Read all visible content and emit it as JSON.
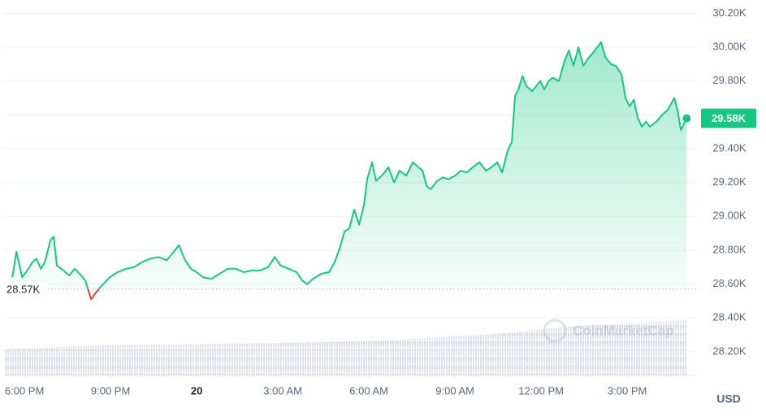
{
  "chart_data": {
    "type": "line",
    "x": [
      -0.42,
      -0.28,
      -0.08,
      0.14,
      0.28,
      0.42,
      0.57,
      0.71,
      0.91,
      1.02,
      1.13,
      1.36,
      1.56,
      1.75,
      1.98,
      2.12,
      2.32,
      2.49,
      2.69,
      2.97,
      3.25,
      3.54,
      3.82,
      4.1,
      4.39,
      4.67,
      4.95,
      5.15,
      5.38,
      5.6,
      5.8,
      6.0,
      6.23,
      6.51,
      6.79,
      7.08,
      7.36,
      7.64,
      7.92,
      8.21,
      8.49,
      8.72,
      8.92,
      9.2,
      9.48,
      9.68,
      9.85,
      10.05,
      10.33,
      10.61,
      10.81,
      10.98,
      11.15,
      11.32,
      11.49,
      11.66,
      11.83,
      11.94,
      12.11,
      12.25,
      12.45,
      12.68,
      12.88,
      13.07,
      13.3,
      13.53,
      13.73,
      13.87,
      14.01,
      14.15,
      14.38,
      14.58,
      14.77,
      15.0,
      15.2,
      15.42,
      15.62,
      15.85,
      16.08,
      16.27,
      16.47,
      16.64,
      16.84,
      16.98,
      17.09,
      17.21,
      17.35,
      17.49,
      17.69,
      17.83,
      17.97,
      18.11,
      18.26,
      18.4,
      18.62,
      18.82,
      18.96,
      19.13,
      19.3,
      19.47,
      19.67,
      19.87,
      20.09,
      20.24,
      20.43,
      20.6,
      20.8,
      20.94,
      21.08,
      21.23,
      21.37,
      21.51,
      21.65,
      21.79,
      22.02,
      22.22,
      22.41,
      22.64,
      22.75,
      22.87,
      23.07
    ],
    "series": [
      {
        "name": "BTC",
        "color": "#16c784",
        "down_color": "#ea3943",
        "values": [
          28.64,
          28.79,
          28.64,
          28.69,
          28.73,
          28.75,
          28.69,
          28.73,
          28.86,
          28.88,
          28.71,
          28.68,
          28.65,
          28.69,
          28.65,
          28.62,
          28.51,
          28.55,
          28.59,
          28.64,
          28.67,
          28.69,
          28.7,
          28.73,
          28.75,
          28.76,
          28.74,
          28.78,
          28.83,
          28.74,
          28.69,
          28.67,
          28.64,
          28.63,
          28.66,
          28.69,
          28.69,
          28.67,
          28.68,
          28.68,
          28.7,
          28.76,
          28.71,
          28.69,
          28.67,
          28.62,
          28.6,
          28.63,
          28.66,
          28.67,
          28.73,
          28.81,
          28.91,
          28.93,
          29.04,
          28.95,
          29.07,
          29.22,
          29.32,
          29.21,
          29.24,
          29.29,
          29.2,
          29.27,
          29.24,
          29.32,
          29.29,
          29.27,
          29.18,
          29.16,
          29.21,
          29.23,
          29.22,
          29.24,
          29.27,
          29.26,
          29.29,
          29.32,
          29.27,
          29.29,
          29.32,
          29.26,
          29.39,
          29.44,
          29.71,
          29.75,
          29.83,
          29.77,
          29.74,
          29.77,
          29.8,
          29.75,
          29.8,
          29.82,
          29.8,
          29.92,
          29.98,
          29.89,
          30.0,
          29.89,
          29.94,
          29.98,
          30.03,
          29.94,
          29.9,
          29.89,
          29.84,
          29.7,
          29.65,
          29.69,
          29.58,
          29.53,
          29.56,
          29.53,
          29.56,
          29.6,
          29.63,
          29.7,
          29.63,
          29.51,
          29.58
        ]
      }
    ],
    "xlim": [
      -0.71,
      23.43
    ],
    "xticks": [
      {
        "value": 0,
        "label": "6:00 PM"
      },
      {
        "value": 3,
        "label": "9:00 PM"
      },
      {
        "value": 6,
        "label": "20"
      },
      {
        "value": 9,
        "label": "3:00 AM"
      },
      {
        "value": 12,
        "label": "6:00 AM"
      },
      {
        "value": 15,
        "label": "9:00 AM"
      },
      {
        "value": 18,
        "label": "12:00 PM"
      },
      {
        "value": 21,
        "label": "3:00 PM"
      }
    ],
    "ylim": [
      28.06,
      30.26
    ],
    "yticks": [
      {
        "value": 28.2,
        "label": "28.20K"
      },
      {
        "value": 28.4,
        "label": "28.40K"
      },
      {
        "value": 28.6,
        "label": "28.60K"
      },
      {
        "value": 28.8,
        "label": "28.80K"
      },
      {
        "value": 29.0,
        "label": "29.00K"
      },
      {
        "value": 29.2,
        "label": "29.20K"
      },
      {
        "value": 29.4,
        "label": "29.40K"
      },
      {
        "value": 29.6,
        "label": "29.60K"
      },
      {
        "value": 29.8,
        "label": "29.80K"
      },
      {
        "value": 30.0,
        "label": "30.00K"
      },
      {
        "value": 30.2,
        "label": "30.20K"
      }
    ],
    "baseline": {
      "value": 28.57,
      "label": "28.57K"
    },
    "current_price": {
      "value": 29.58,
      "label": "29.58K"
    },
    "currency_label": "USD",
    "watermark": "CoinMarketCap",
    "grid": true
  }
}
